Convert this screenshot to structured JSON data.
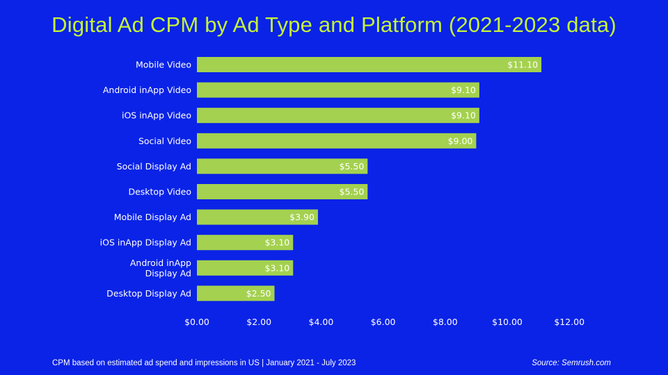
{
  "slide": {
    "footer_note": "CPM based on estimated ad spend and impressions in US   |   January 2021 - July 2023",
    "source": "Source: Semrush.com"
  },
  "colors": {
    "background": "#0a23e6",
    "title": "#c4f23a",
    "bar": "#a4d14f",
    "text": "#ffffff"
  },
  "chart_data": {
    "type": "bar",
    "orientation": "horizontal",
    "title": "Digital Ad CPM by Ad Type and Platform (2021-2023 data)",
    "categories": [
      [
        "Mobile Video"
      ],
      [
        "Android inApp Video"
      ],
      [
        "iOS inApp Video"
      ],
      [
        "Social Video"
      ],
      [
        "Social Display Ad"
      ],
      [
        "Desktop Video"
      ],
      [
        "Mobile Display Ad"
      ],
      [
        "iOS inApp Display Ad"
      ],
      [
        "Android inApp",
        "Display Ad"
      ],
      [
        "Desktop Display Ad"
      ]
    ],
    "values": [
      11.1,
      9.1,
      9.1,
      9.0,
      5.5,
      5.5,
      3.9,
      3.1,
      3.1,
      2.5
    ],
    "value_labels": [
      "$11.10",
      "$9.10",
      "$9.10",
      "$9.00",
      "$5.50",
      "$5.50",
      "$3.90",
      "$3.10",
      "$3.10",
      "$2.50"
    ],
    "xlim": [
      0,
      12
    ],
    "xticks": [
      0,
      2,
      4,
      6,
      8,
      10,
      12
    ],
    "xtick_labels": [
      "$0.00",
      "$2.00",
      "$4.00",
      "$6.00",
      "$8.00",
      "$10.00",
      "$12.00"
    ],
    "xlabel": "",
    "ylabel": "",
    "grid": false,
    "legend": "none"
  }
}
